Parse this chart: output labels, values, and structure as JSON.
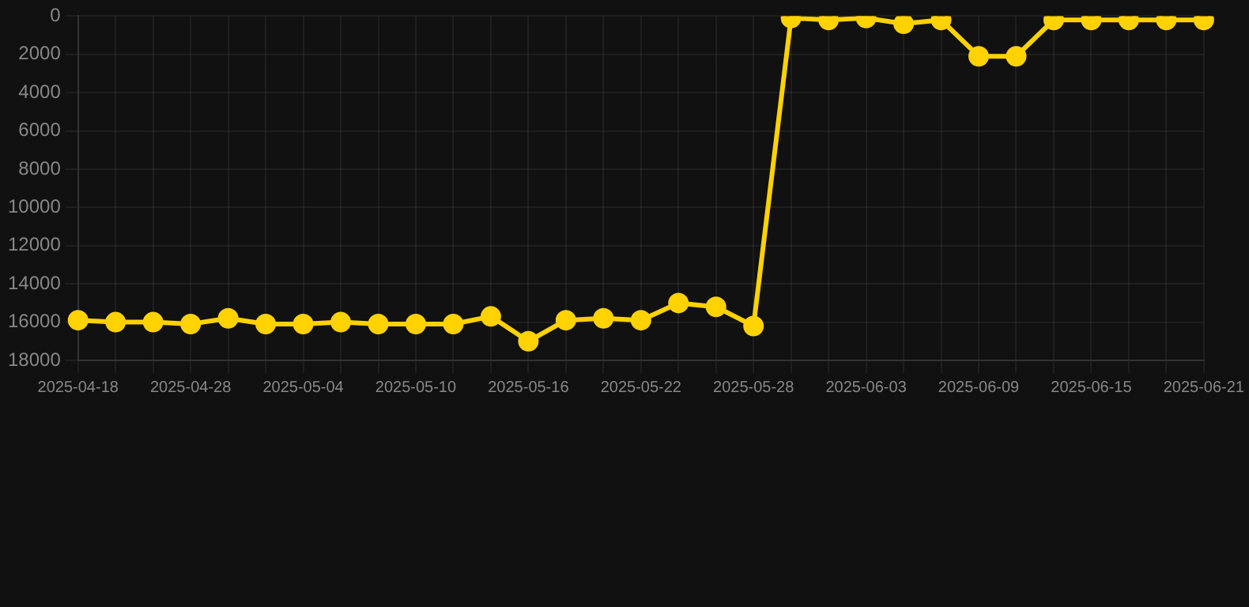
{
  "chart_data": {
    "type": "line",
    "categories": [
      "2025-04-18",
      null,
      null,
      "2025-04-28",
      null,
      null,
      "2025-05-04",
      null,
      null,
      "2025-05-10",
      null,
      null,
      "2025-05-16",
      null,
      null,
      "2025-05-22",
      null,
      null,
      "2025-05-28",
      null,
      null,
      "2025-06-03",
      null,
      null,
      "2025-06-09",
      null,
      null,
      "2025-06-15",
      null,
      null,
      "2025-06-21"
    ],
    "series": [
      {
        "color": "#ffd200",
        "values": [
          15900,
          16000,
          16000,
          16100,
          15800,
          16100,
          16100,
          16000,
          16100,
          16100,
          16100,
          15700,
          17000,
          15900,
          15800,
          15900,
          15000,
          15200,
          16200,
          100,
          200,
          100,
          400,
          200,
          2100,
          2100,
          200,
          200,
          200,
          200,
          200
        ]
      }
    ],
    "ylim": [
      18000,
      0
    ],
    "yticks": [
      0,
      2000,
      4000,
      6000,
      8000,
      10000,
      12000,
      14000,
      16000,
      18000
    ],
    "grid": true,
    "legend": false,
    "marker": "circle",
    "line_style": "solid"
  }
}
